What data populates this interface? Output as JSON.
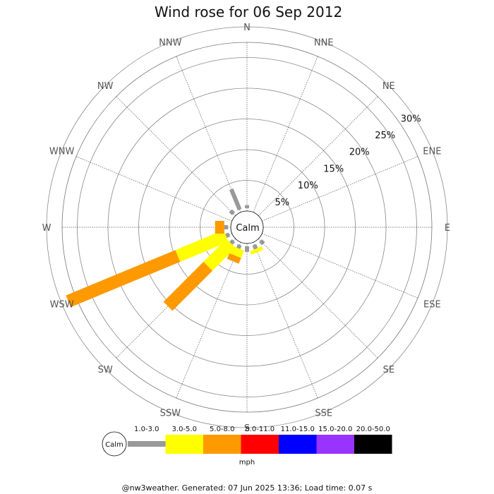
{
  "chart_data": {
    "type": "windrose",
    "title": "Wind rose for 06 Sep 2012",
    "directions": [
      "N",
      "NNE",
      "NE",
      "ENE",
      "E",
      "ESE",
      "SE",
      "SSE",
      "S",
      "SSW",
      "SW",
      "WSW",
      "W",
      "WNW",
      "NW",
      "NNW"
    ],
    "radial_ticks": [
      "5%",
      "10%",
      "15%",
      "20%",
      "25%",
      "30%"
    ],
    "radial_values": [
      5,
      10,
      15,
      20,
      25,
      30
    ],
    "center_label": "Calm",
    "speed_bins": [
      {
        "label": "1.0-3.0",
        "color": "#999999"
      },
      {
        "label": "3.0-5.0",
        "color": "#ffff00"
      },
      {
        "label": "5.0-8.0",
        "color": "#ff9900"
      },
      {
        "label": "8.0-11.0",
        "color": "#ff0000"
      },
      {
        "label": "11.0-15.0",
        "color": "#0000ff"
      },
      {
        "label": "15.0-20.0",
        "color": "#9933ff"
      },
      {
        "label": "20.0-50.0",
        "color": "#000000"
      }
    ],
    "units": "mph",
    "series": [
      {
        "direction": "N",
        "values": [
          0.5,
          0,
          0,
          0,
          0,
          0,
          0
        ]
      },
      {
        "direction": "NNE",
        "values": [
          0,
          0,
          0,
          0,
          0,
          0,
          0
        ]
      },
      {
        "direction": "NE",
        "values": [
          0,
          0,
          0,
          0,
          0,
          0,
          0
        ]
      },
      {
        "direction": "ENE",
        "values": [
          0,
          0,
          0,
          0,
          0,
          0,
          0
        ]
      },
      {
        "direction": "E",
        "values": [
          0,
          0,
          0,
          0,
          0,
          0,
          0
        ]
      },
      {
        "direction": "ESE",
        "values": [
          0,
          0,
          0,
          0,
          0,
          0,
          0
        ]
      },
      {
        "direction": "SE",
        "values": [
          0.7,
          0,
          0,
          0,
          0,
          0,
          0
        ]
      },
      {
        "direction": "SSE",
        "values": [
          0.7,
          0.6,
          0,
          0,
          0,
          0,
          0
        ]
      },
      {
        "direction": "S",
        "values": [
          0.9,
          0,
          0,
          0,
          0,
          0,
          0
        ]
      },
      {
        "direction": "SSW",
        "values": [
          0.6,
          1.3,
          1.0,
          0,
          0,
          0,
          0
        ]
      },
      {
        "direction": "SW",
        "values": [
          0.6,
          5.3,
          9.2,
          0,
          0,
          0,
          0
        ]
      },
      {
        "direction": "WSW",
        "values": [
          0.6,
          8.5,
          19.3,
          0,
          0,
          0,
          0
        ]
      },
      {
        "direction": "W",
        "values": [
          0.6,
          0,
          1.5,
          0,
          0,
          0,
          0
        ]
      },
      {
        "direction": "WNW",
        "values": [
          0,
          0,
          0,
          0,
          0,
          0,
          0
        ]
      },
      {
        "direction": "NW",
        "values": [
          0.7,
          0,
          0,
          0,
          0,
          0,
          0
        ]
      },
      {
        "direction": "NNW",
        "values": [
          3.6,
          0,
          0,
          0,
          0,
          0,
          0
        ]
      }
    ]
  },
  "footer": "@nw3weather. Generated: 07 Jun 2025 13:36; Load time: 0.07 s"
}
